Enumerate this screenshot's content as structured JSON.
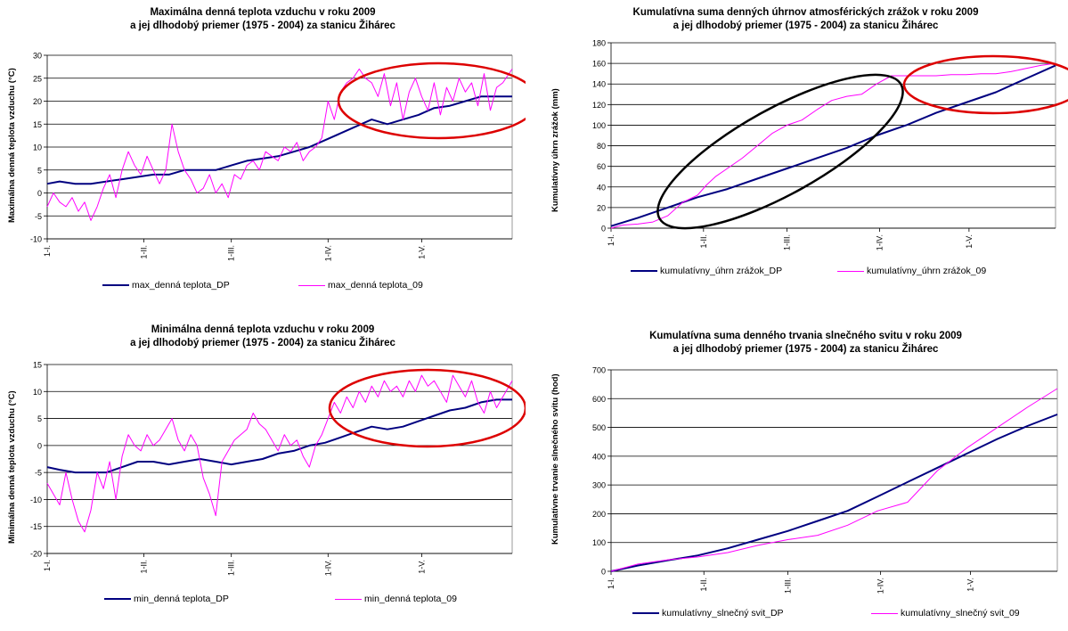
{
  "chart_data": [
    {
      "id": "tmax",
      "type": "line",
      "title_lines": [
        "Maximálna denná teplota vzduchu v roku 2009",
        "a jej dlhodobý priemer (1975 - 2004) za stanicu Žihárec"
      ],
      "ylabel": "Maximálna denná teplota vzduchu (°C)",
      "xlabel": "",
      "ylim": [
        -10,
        30
      ],
      "yticks": [
        -10,
        -5,
        0,
        5,
        10,
        15,
        20,
        25,
        30
      ],
      "xlim": [
        1,
        150
      ],
      "xticks": [
        {
          "day": 1,
          "label": "1-I."
        },
        {
          "day": 32,
          "label": "1-II."
        },
        {
          "day": 60,
          "label": "1-III."
        },
        {
          "day": 91,
          "label": "1-IV."
        },
        {
          "day": 121,
          "label": "1-V."
        }
      ],
      "grid": "horizontal",
      "legend_position": "bottom",
      "series": [
        {
          "name": "max_denná teplota_DP",
          "color": "#000080",
          "x": [
            1,
            5,
            10,
            15,
            20,
            25,
            30,
            35,
            40,
            45,
            50,
            55,
            60,
            65,
            70,
            75,
            80,
            85,
            90,
            95,
            100,
            105,
            110,
            115,
            120,
            125,
            130,
            135,
            140,
            145,
            150
          ],
          "y": [
            2,
            2.5,
            2,
            2,
            2.5,
            3,
            3.5,
            4,
            4,
            5,
            5,
            5,
            6,
            7,
            7.5,
            8,
            9,
            10,
            11.5,
            13,
            14.5,
            16,
            15,
            16,
            17,
            18.5,
            19,
            20,
            21,
            21,
            21
          ]
        },
        {
          "name": "max_denná teplota_09",
          "color": "#ff00ff",
          "x": [
            1,
            3,
            5,
            7,
            9,
            11,
            13,
            15,
            17,
            19,
            21,
            23,
            25,
            27,
            29,
            31,
            33,
            35,
            37,
            39,
            41,
            43,
            45,
            47,
            49,
            51,
            53,
            55,
            57,
            59,
            61,
            63,
            65,
            67,
            69,
            71,
            73,
            75,
            77,
            79,
            81,
            83,
            85,
            87,
            89,
            91,
            93,
            95,
            97,
            99,
            101,
            103,
            105,
            107,
            109,
            111,
            113,
            115,
            117,
            119,
            121,
            123,
            125,
            127,
            129,
            131,
            133,
            135,
            137,
            139,
            141,
            143,
            145,
            147,
            150
          ],
          "y": [
            -3,
            0,
            -2,
            -3,
            -1,
            -4,
            -2,
            -6,
            -3,
            1,
            4,
            -1,
            5,
            9,
            6,
            4,
            8,
            5,
            2,
            5,
            15,
            9,
            5,
            3,
            0,
            1,
            4,
            0,
            2,
            -1,
            4,
            3,
            6,
            7,
            5,
            9,
            8,
            7,
            10,
            9,
            11,
            7,
            9,
            10,
            12,
            20,
            16,
            22,
            24,
            25,
            27,
            25,
            24,
            21,
            26,
            19,
            24,
            16,
            22,
            25,
            21,
            18,
            24,
            17,
            23,
            20,
            25,
            22,
            24,
            19,
            26,
            18,
            23,
            24,
            27
          ]
        }
      ]
    },
    {
      "id": "precip",
      "type": "line",
      "title_lines": [
        "Kumulatívna suma denných úhrnov atmosférických zrážok v roku 2009",
        "a jej dlhodobý priemer (1975 - 2004) za stanicu Žihárec"
      ],
      "ylabel": "Kumulatívny úhrn zrážok (mm)",
      "xlabel": "",
      "ylim": [
        0,
        180
      ],
      "yticks": [
        0,
        20,
        40,
        60,
        80,
        100,
        120,
        140,
        160,
        180
      ],
      "xlim": [
        1,
        150
      ],
      "xticks": [
        {
          "day": 1,
          "label": "1-I."
        },
        {
          "day": 32,
          "label": "1-II."
        },
        {
          "day": 60,
          "label": "1-III."
        },
        {
          "day": 91,
          "label": "1-IV."
        },
        {
          "day": 121,
          "label": "1-V."
        }
      ],
      "grid": "horizontal",
      "legend_position": "bottom",
      "series": [
        {
          "name": "kumulatívny_úhrn zrážok_DP",
          "color": "#000080",
          "x": [
            1,
            10,
            20,
            30,
            40,
            50,
            60,
            70,
            80,
            90,
            100,
            110,
            120,
            130,
            140,
            150
          ],
          "y": [
            2,
            10,
            20,
            30,
            38,
            48,
            58,
            68,
            78,
            90,
            100,
            112,
            122,
            132,
            145,
            158
          ]
        },
        {
          "name": "kumulatívny_úhrn zrážok_09",
          "color": "#ff00ff",
          "x": [
            1,
            5,
            10,
            15,
            20,
            25,
            30,
            33,
            36,
            40,
            45,
            50,
            55,
            60,
            65,
            70,
            75,
            80,
            85,
            90,
            95,
            100,
            105,
            110,
            115,
            120,
            125,
            130,
            135,
            140,
            145,
            150
          ],
          "y": [
            0,
            3,
            4,
            6,
            12,
            25,
            32,
            42,
            50,
            58,
            68,
            80,
            92,
            100,
            105,
            115,
            124,
            128,
            130,
            140,
            148,
            148,
            148,
            148,
            149,
            149,
            150,
            150,
            152,
            155,
            158,
            160
          ]
        }
      ]
    },
    {
      "id": "tmin",
      "type": "line",
      "title_lines": [
        "Minimálna denná teplota vzduchu v roku 2009",
        "a jej dlhodobý priemer (1975 - 2004) za stanicu Žihárec"
      ],
      "ylabel": "Minimálna denná teplota vzduchu (°C)",
      "xlabel": "",
      "ylim": [
        -20,
        15
      ],
      "yticks": [
        -20,
        -15,
        -10,
        -5,
        0,
        5,
        10,
        15
      ],
      "xlim": [
        1,
        150
      ],
      "xticks": [
        {
          "day": 1,
          "label": "1-I."
        },
        {
          "day": 32,
          "label": "1-II."
        },
        {
          "day": 60,
          "label": "1-III."
        },
        {
          "day": 91,
          "label": "1-IV."
        },
        {
          "day": 121,
          "label": "1-V."
        }
      ],
      "grid": "horizontal",
      "legend_position": "bottom",
      "series": [
        {
          "name": "min_denná teplota_DP",
          "color": "#000080",
          "x": [
            1,
            5,
            10,
            15,
            20,
            25,
            30,
            35,
            40,
            45,
            50,
            55,
            60,
            65,
            70,
            75,
            80,
            85,
            90,
            95,
            100,
            105,
            110,
            115,
            120,
            125,
            130,
            135,
            140,
            145,
            150
          ],
          "y": [
            -4,
            -4.5,
            -5,
            -5,
            -5,
            -4,
            -3,
            -3,
            -3.5,
            -3,
            -2.5,
            -3,
            -3.5,
            -3,
            -2.5,
            -1.5,
            -1,
            0,
            0.5,
            1.5,
            2.5,
            3.5,
            3,
            3.5,
            4.5,
            5.5,
            6.5,
            7,
            8,
            8.5,
            8.5
          ]
        },
        {
          "name": "min_denná teplota_09",
          "color": "#ff00ff",
          "x": [
            1,
            3,
            5,
            7,
            9,
            11,
            13,
            15,
            17,
            19,
            21,
            23,
            25,
            27,
            29,
            31,
            33,
            35,
            37,
            39,
            41,
            43,
            45,
            47,
            49,
            51,
            53,
            55,
            57,
            59,
            61,
            63,
            65,
            67,
            69,
            71,
            73,
            75,
            77,
            79,
            81,
            83,
            85,
            87,
            89,
            91,
            93,
            95,
            97,
            99,
            101,
            103,
            105,
            107,
            109,
            111,
            113,
            115,
            117,
            119,
            121,
            123,
            125,
            127,
            129,
            131,
            133,
            135,
            137,
            139,
            141,
            143,
            145,
            147,
            150
          ],
          "y": [
            -7,
            -9,
            -11,
            -5,
            -10,
            -14,
            -16,
            -12,
            -5,
            -8,
            -3,
            -10,
            -2,
            2,
            0,
            -1,
            2,
            0,
            1,
            3,
            5,
            1,
            -1,
            2,
            0,
            -6,
            -9,
            -13,
            -3,
            -1,
            1,
            2,
            3,
            6,
            4,
            3,
            1,
            -1,
            2,
            0,
            1,
            -2,
            -4,
            0,
            2,
            5,
            8,
            6,
            9,
            7,
            10,
            8,
            11,
            9,
            12,
            10,
            11,
            9,
            12,
            10,
            13,
            11,
            12,
            10,
            8,
            13,
            11,
            9,
            12,
            8,
            6,
            10,
            7,
            9,
            12
          ]
        }
      ]
    },
    {
      "id": "sunshine",
      "type": "line",
      "title_lines": [
        "Kumulatívna suma denného trvania slnečného svitu v roku 2009",
        "a jej dlhodobý priemer (1975 - 2004) za stanicu Žihárec"
      ],
      "ylabel": "Kumulatívne trvanie slnečného svitu (hod)",
      "xlabel": "",
      "ylim": [
        0,
        700
      ],
      "yticks": [
        0,
        100,
        200,
        300,
        400,
        500,
        600,
        700
      ],
      "xlim": [
        1,
        150
      ],
      "xticks": [
        {
          "day": 1,
          "label": "1-I."
        },
        {
          "day": 32,
          "label": "1-II."
        },
        {
          "day": 60,
          "label": "1-III."
        },
        {
          "day": 91,
          "label": "1-IV."
        },
        {
          "day": 121,
          "label": "1-V."
        }
      ],
      "grid": "horizontal",
      "legend_position": "bottom",
      "series": [
        {
          "name": "kumulatívny_slnečný svit_DP",
          "color": "#000080",
          "x": [
            1,
            10,
            20,
            30,
            40,
            50,
            60,
            70,
            80,
            90,
            100,
            110,
            120,
            130,
            140,
            150
          ],
          "y": [
            0,
            20,
            38,
            55,
            80,
            110,
            140,
            175,
            210,
            260,
            310,
            360,
            410,
            460,
            505,
            545
          ]
        },
        {
          "name": "kumulatívny_slnečný svit_09",
          "color": "#ff00ff",
          "x": [
            1,
            10,
            20,
            30,
            40,
            50,
            60,
            70,
            80,
            90,
            100,
            110,
            120,
            130,
            140,
            150
          ],
          "y": [
            0,
            25,
            40,
            50,
            65,
            90,
            110,
            125,
            160,
            210,
            240,
            350,
            430,
            500,
            570,
            635
          ]
        }
      ]
    }
  ]
}
